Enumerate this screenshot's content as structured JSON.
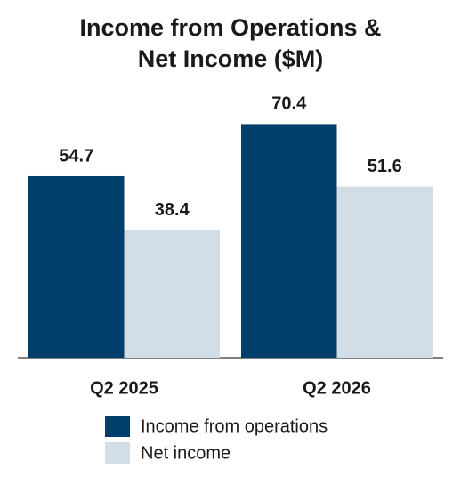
{
  "chart_data": {
    "type": "bar",
    "title": [
      "Income from Operations &",
      "Net Income ($M)"
    ],
    "categories": [
      "Q2 2025",
      "Q2 2026"
    ],
    "series": [
      {
        "name": "Income from operations",
        "color": "#003f6b",
        "values": [
          54.7,
          70.4
        ]
      },
      {
        "name": "Net income",
        "color": "#d3dde6",
        "values": [
          38.4,
          51.6
        ]
      }
    ]
  }
}
